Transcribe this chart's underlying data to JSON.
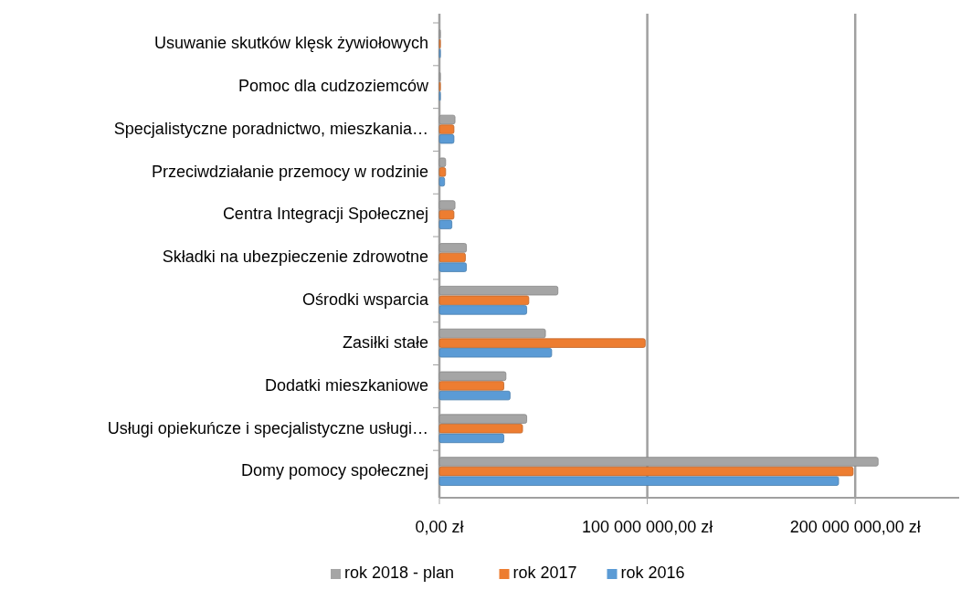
{
  "chart_data": {
    "type": "bar",
    "orientation": "horizontal",
    "categories": [
      "Usuwanie skutków klęsk żywiołowych",
      "Pomoc dla cudzoziemców",
      "Specjalistyczne poradnictwo, mieszkania…",
      "Przeciwdziałanie przemocy w rodzinie",
      "Centra Integracji Społecznej",
      "Składki na ubezpieczenie zdrowotne",
      "Ośrodki wsparcia",
      "Zasiłki stałe",
      "Dodatki mieszkaniowe",
      "Usługi opiekuńcze i specjalistyczne usługi…",
      "Domy pomocy społecznej"
    ],
    "series": [
      {
        "name": "rok 2018 - plan",
        "color": "#a5a5a5",
        "values": [
          500000,
          500000,
          7500000,
          3000000,
          7500000,
          13000000,
          57000000,
          51000000,
          32000000,
          42000000,
          211000000
        ]
      },
      {
        "name": "rok 2017",
        "color": "#ed7d31",
        "values": [
          500000,
          500000,
          7000000,
          3000000,
          7000000,
          12500000,
          43000000,
          99000000,
          31000000,
          40000000,
          199000000
        ]
      },
      {
        "name": "rok 2016",
        "color": "#5b9bd5",
        "values": [
          500000,
          500000,
          7000000,
          2500000,
          6000000,
          13000000,
          42000000,
          54000000,
          34000000,
          31000000,
          192000000
        ]
      }
    ],
    "xlim": [
      0,
      250000000
    ],
    "xticks": [
      {
        "value": 0,
        "label": "0,00 zł"
      },
      {
        "value": 100000000,
        "label": "100 000 000,00 zł"
      },
      {
        "value": 200000000,
        "label": "200 000 000,00 zł"
      }
    ],
    "grid": "x",
    "legend": "bottom"
  }
}
